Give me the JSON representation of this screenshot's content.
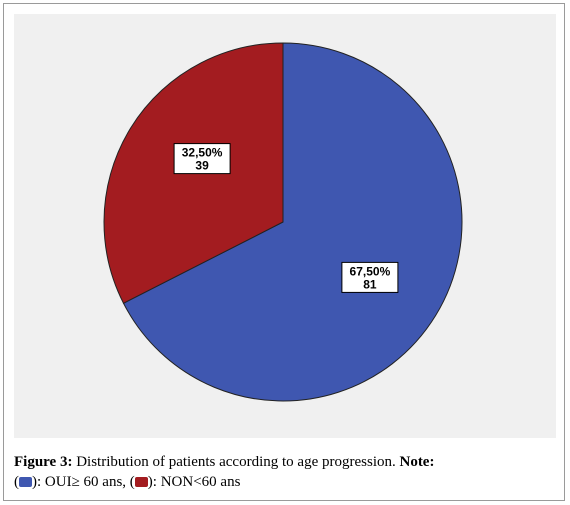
{
  "chart_data": {
    "type": "pie",
    "title": "",
    "slices": [
      {
        "percent_label": "67,50%",
        "count_label": "81",
        "value": 81,
        "color": "#3f57b0"
      },
      {
        "percent_label": "32,50%",
        "count_label": "39",
        "value": 39,
        "color": "#a31c20"
      }
    ],
    "start_angle_deg": 0,
    "direction": "clockwise"
  },
  "caption": {
    "figure_label": "Figure 3:",
    "text": " Distribution of patients according to age progression. ",
    "note_label": "Note:",
    "open_paren": "(",
    "legend_1": "): OUI≥ 60 ans, (",
    "legend_2": "): NON<60 ans",
    "swatch_1_color": "#3f57b0",
    "swatch_2_color": "#a31c20"
  }
}
